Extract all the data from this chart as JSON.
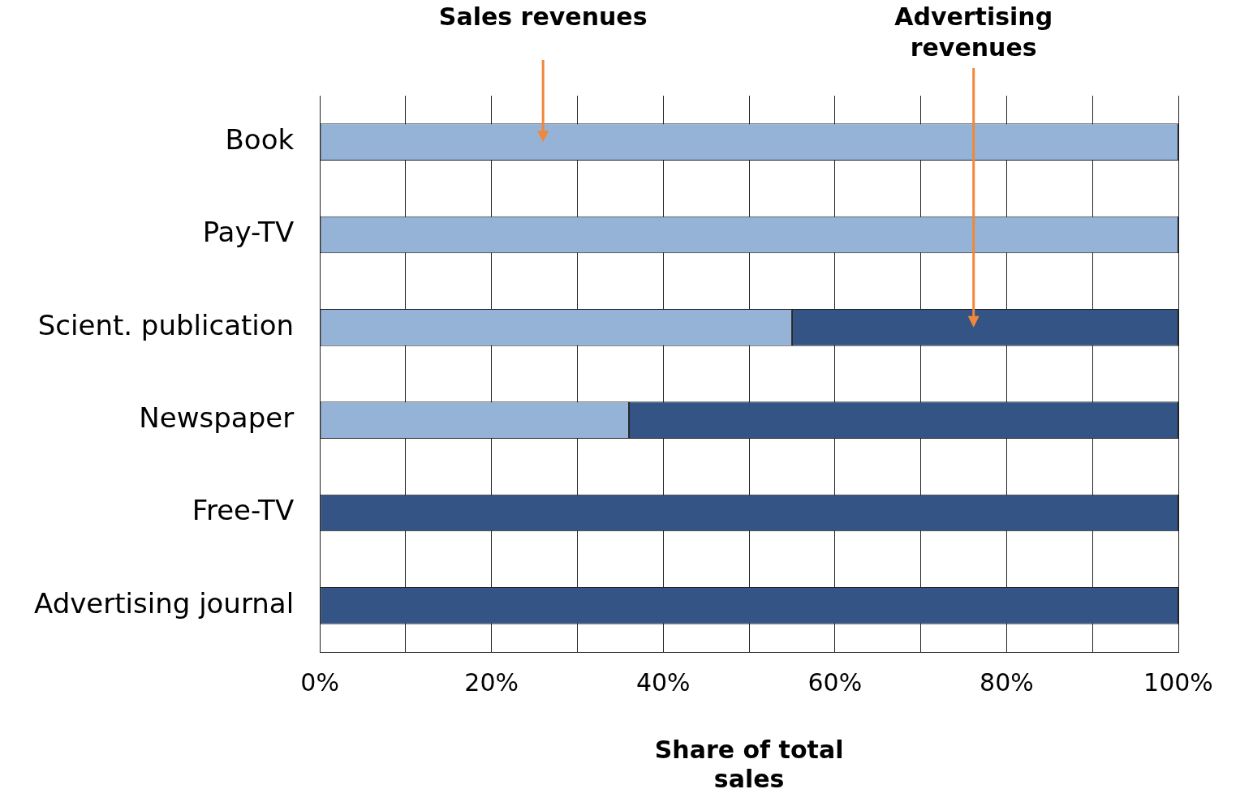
{
  "chart_data": {
    "type": "bar",
    "orientation": "horizontal",
    "stacked": true,
    "categories": [
      "Book",
      "Pay-TV",
      "Scient. publication",
      "Newspaper",
      "Free-TV",
      "Advertising journal"
    ],
    "series": [
      {
        "name": "Sales revenues",
        "color": "#95b3d7",
        "values": [
          100,
          100,
          55,
          36,
          0,
          0
        ]
      },
      {
        "name": "Advertising revenues",
        "color": "#335485",
        "values": [
          0,
          0,
          45,
          64,
          100,
          100
        ]
      }
    ],
    "xlabel": "Share of total sales",
    "xlim": [
      0,
      100
    ],
    "xticks": [
      {
        "value": 0,
        "label": "0%"
      },
      {
        "value": 10,
        "label": null
      },
      {
        "value": 20,
        "label": "20%"
      },
      {
        "value": 30,
        "label": null
      },
      {
        "value": 40,
        "label": "40%"
      },
      {
        "value": 50,
        "label": null
      },
      {
        "value": 60,
        "label": "60%"
      },
      {
        "value": 70,
        "label": null
      },
      {
        "value": 80,
        "label": "80%"
      },
      {
        "value": 90,
        "label": null
      },
      {
        "value": 100,
        "label": "100%"
      }
    ],
    "grid": "x",
    "legend": false
  }
}
